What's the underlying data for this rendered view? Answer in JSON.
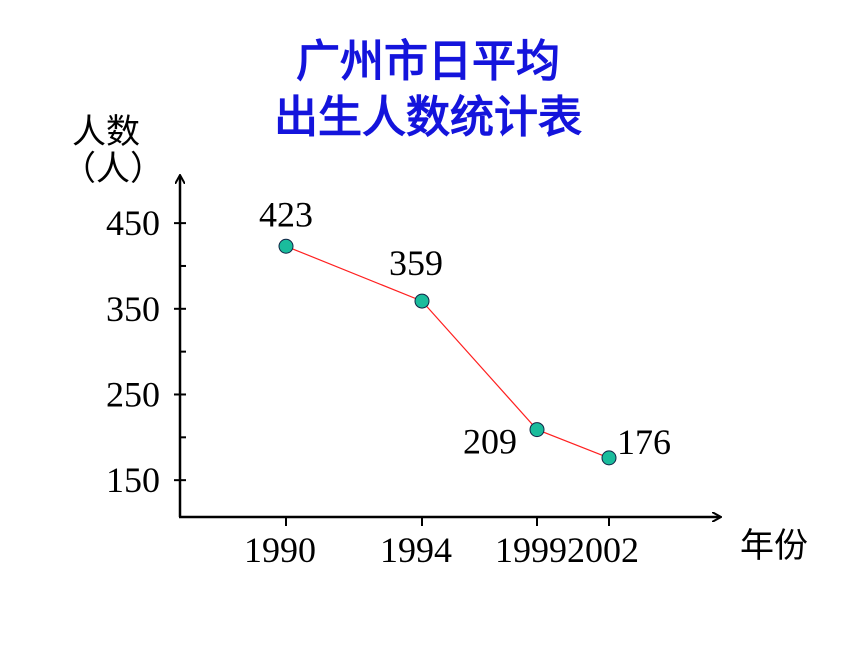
{
  "chart_data": {
    "type": "line",
    "title": [
      "广州市日平均",
      "出生人数统计表"
    ],
    "title_color": "#1414dc",
    "y_label": [
      "人数",
      "（人）"
    ],
    "x_label": "年份",
    "categories": [
      "1990",
      "1994",
      "1999",
      "2002"
    ],
    "series": [
      {
        "color": "#ff2020",
        "marker_color": "#1abc9c",
        "values": [
          423,
          359,
          209,
          176
        ]
      }
    ],
    "ylim": [
      107,
      505
    ],
    "yticks": [
      150,
      250,
      350,
      450
    ],
    "yminor_ticks": [
      200,
      300,
      400
    ]
  }
}
